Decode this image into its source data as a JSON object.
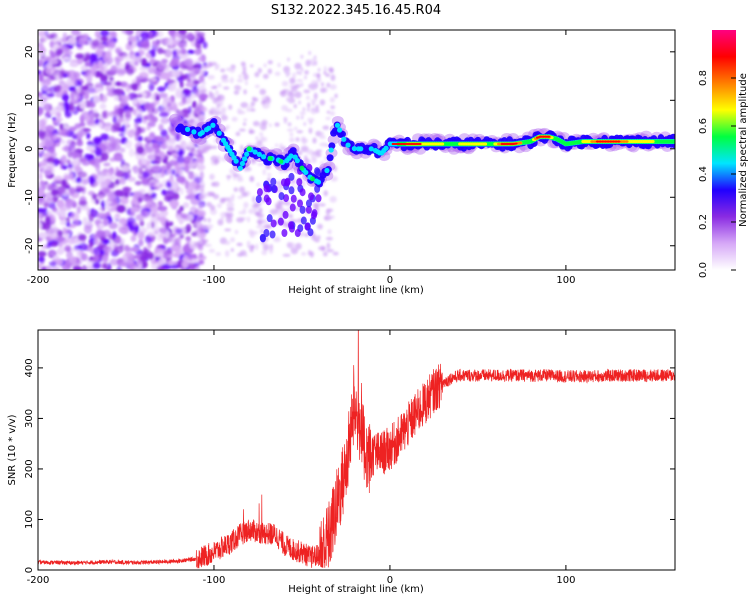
{
  "title": "S132.2022.345.16.45.R04",
  "chart_data": [
    {
      "type": "heatmap",
      "xlabel": "Height of straight line (km)",
      "ylabel": "Frequency (Hz)",
      "xlim": [
        -200,
        162
      ],
      "ylim": [
        -25,
        24.5
      ],
      "x_ticks": [
        -200,
        -100,
        0,
        100
      ],
      "y_ticks": [
        -20,
        -10,
        0,
        10,
        20
      ],
      "grid": false,
      "colorbar": {
        "label": "Normalized spectral amplitude",
        "range": [
          0,
          1
        ],
        "ticks": [
          0.0,
          0.2,
          0.4,
          0.6,
          0.8
        ],
        "colormap": [
          "#ffffff",
          "#d6a8f7",
          "#8a2be2",
          "#2000ff",
          "#00e5ff",
          "#00ff40",
          "#ffff00",
          "#ff7f00",
          "#ff0000",
          "#ff0080"
        ]
      },
      "ridge": {
        "x": [
          -122,
          -115,
          -108,
          -100,
          -95,
          -90,
          -85,
          -80,
          -75,
          -70,
          -65,
          -60,
          -55,
          -50,
          -45,
          -40,
          -35,
          -32,
          -30,
          -25,
          -20,
          -15,
          -10,
          -5,
          0,
          10,
          20,
          30,
          40,
          50,
          60,
          70,
          80,
          85,
          90,
          95,
          100,
          110,
          120,
          130,
          140,
          150,
          162
        ],
        "y": [
          5,
          4,
          3,
          5,
          2,
          -1,
          -4,
          0,
          -1,
          -2,
          -2,
          -3,
          -1,
          -4,
          -6,
          -7,
          -4,
          3,
          5,
          1,
          0,
          0,
          0,
          -1,
          1,
          1,
          1,
          1,
          1,
          1,
          1,
          1,
          1.5,
          2.5,
          2.5,
          2,
          1,
          1.5,
          1.5,
          1.5,
          1.5,
          1.5,
          1.5
        ]
      }
    },
    {
      "type": "line",
      "xlabel": "Height of straight line (km)",
      "ylabel": "SNR (10 * v/v)",
      "xlim": [
        -200,
        162
      ],
      "ylim": [
        0,
        475
      ],
      "x_ticks": [
        -200,
        -100,
        0,
        100
      ],
      "y_ticks": [
        0,
        100,
        200,
        300,
        400
      ],
      "grid": false,
      "series": [
        {
          "color": "#ee2222",
          "x": [
            -200,
            -190,
            -180,
            -170,
            -160,
            -150,
            -140,
            -130,
            -120,
            -110,
            -105,
            -100,
            -95,
            -90,
            -85,
            -80,
            -75,
            -70,
            -65,
            -60,
            -55,
            -50,
            -45,
            -40,
            -35,
            -30,
            -25,
            -22,
            -20,
            -18,
            -15,
            -12,
            -10,
            -5,
            0,
            5,
            10,
            15,
            20,
            25,
            30,
            35,
            40,
            50,
            60,
            70,
            80,
            90,
            100,
            110,
            120,
            130,
            140,
            150,
            162
          ],
          "y": [
            15,
            15,
            14,
            15,
            16,
            15,
            15,
            16,
            18,
            22,
            28,
            35,
            45,
            55,
            70,
            80,
            75,
            72,
            70,
            50,
            40,
            35,
            25,
            30,
            60,
            130,
            200,
            280,
            320,
            300,
            250,
            220,
            230,
            230,
            240,
            260,
            285,
            310,
            330,
            355,
            370,
            380,
            385,
            385,
            385,
            385,
            385,
            385,
            383,
            383,
            384,
            385,
            385,
            385,
            385
          ]
        }
      ]
    }
  ]
}
